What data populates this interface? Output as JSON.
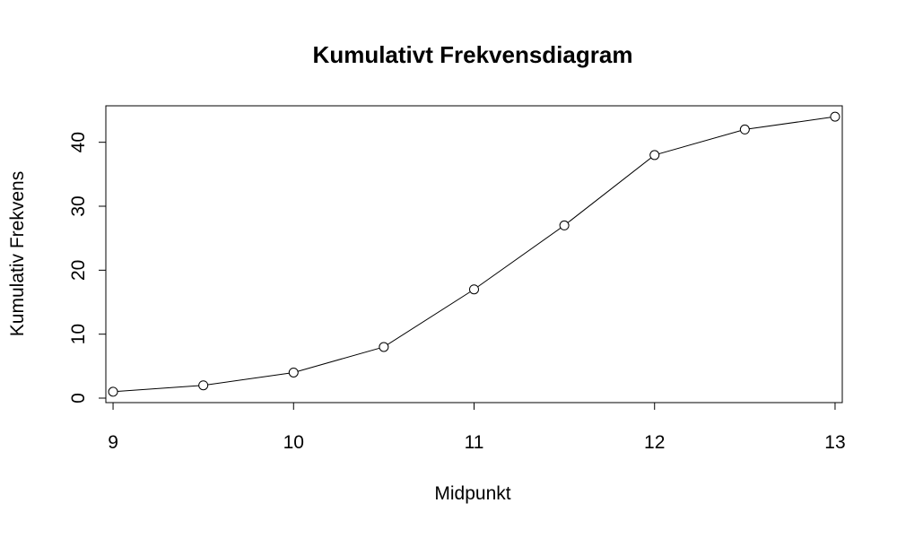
{
  "chart_data": {
    "type": "line",
    "title": "Kumulativt Frekvensdiagram",
    "xlabel": "Midpunkt",
    "ylabel": "Kumulativ Frekvens",
    "x": [
      9,
      9.5,
      10,
      10.5,
      11,
      11.5,
      12,
      12.5,
      13
    ],
    "y": [
      1,
      2,
      4,
      8,
      17,
      27,
      38,
      42,
      44
    ],
    "xlim": [
      8.96,
      13.04
    ],
    "ylim": [
      -0.7,
      45.7
    ],
    "x_ticks": [
      9,
      10,
      11,
      12,
      13
    ],
    "x_tick_labels": [
      "9",
      "10",
      "11",
      "12",
      "13"
    ],
    "y_ticks": [
      0,
      10,
      20,
      30,
      40
    ],
    "y_tick_labels": [
      "0",
      "10",
      "20",
      "30",
      "40"
    ],
    "marker": "open-circle",
    "line_color": "#000000",
    "grid": false,
    "legend": "none"
  }
}
